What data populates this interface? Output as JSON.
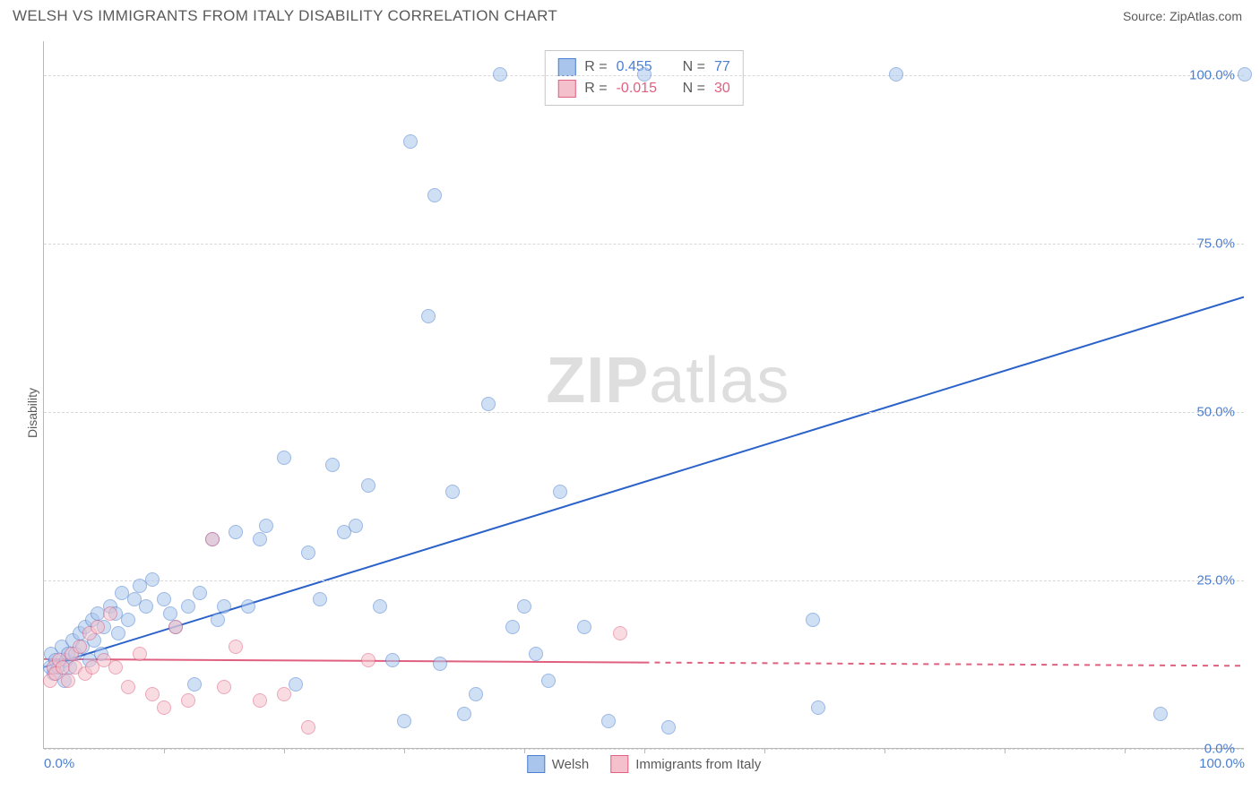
{
  "header": {
    "title": "WELSH VS IMMIGRANTS FROM ITALY DISABILITY CORRELATION CHART",
    "source_prefix": "Source: ",
    "source": "ZipAtlas.com"
  },
  "ylabel": "Disability",
  "watermark": {
    "bold": "ZIP",
    "light": "atlas"
  },
  "chart": {
    "type": "scatter",
    "xlim": [
      0,
      100
    ],
    "ylim": [
      0,
      105
    ],
    "ytick_labels": [
      "0.0%",
      "25.0%",
      "50.0%",
      "75.0%",
      "100.0%"
    ],
    "ytick_vals": [
      0,
      25,
      50,
      75,
      100
    ],
    "xtick_labels": [
      "0.0%",
      "100.0%"
    ],
    "xtick_vals": [
      0,
      100
    ],
    "xtick_minor": [
      10,
      20,
      30,
      40,
      50,
      60,
      70,
      80,
      90
    ],
    "grid_color": "#d8d8d8",
    "axis_color": "#b8b8b8",
    "background_color": "#ffffff",
    "label_color": "#4b7fd1",
    "point_radius": 8,
    "point_opacity": 0.55,
    "series": [
      {
        "name": "Welsh",
        "fill": "#a9c5ec",
        "stroke": "#4b7fd1",
        "r": "0.455",
        "n": "77",
        "trend": {
          "x1": 0,
          "y1": 12,
          "x2": 100,
          "y2": 67,
          "solid_until": 100,
          "color": "#2b62c9",
          "width": 2
        },
        "points": [
          [
            0.5,
            12
          ],
          [
            0.6,
            14
          ],
          [
            0.8,
            11
          ],
          [
            1,
            13
          ],
          [
            1.2,
            12
          ],
          [
            1.5,
            15
          ],
          [
            1.7,
            10
          ],
          [
            1.9,
            13
          ],
          [
            2.0,
            14
          ],
          [
            2.2,
            12
          ],
          [
            2.4,
            16
          ],
          [
            2.6,
            14
          ],
          [
            3,
            17
          ],
          [
            3.2,
            15
          ],
          [
            3.4,
            18
          ],
          [
            3.8,
            13
          ],
          [
            4,
            19
          ],
          [
            4.2,
            16
          ],
          [
            4.5,
            20
          ],
          [
            4.8,
            14
          ],
          [
            5,
            18
          ],
          [
            5.5,
            21
          ],
          [
            6,
            20
          ],
          [
            6.2,
            17
          ],
          [
            6.5,
            23
          ],
          [
            7,
            19
          ],
          [
            7.5,
            22
          ],
          [
            8,
            24
          ],
          [
            8.5,
            21
          ],
          [
            9,
            25
          ],
          [
            10,
            22
          ],
          [
            10.5,
            20
          ],
          [
            11,
            18
          ],
          [
            12,
            21
          ],
          [
            12.5,
            9.5
          ],
          [
            13,
            23
          ],
          [
            14,
            31
          ],
          [
            14.5,
            19
          ],
          [
            15,
            21
          ],
          [
            16,
            32
          ],
          [
            17,
            21
          ],
          [
            18,
            31
          ],
          [
            18.5,
            33
          ],
          [
            20,
            43
          ],
          [
            21,
            9.5
          ],
          [
            22,
            29
          ],
          [
            23,
            22
          ],
          [
            24,
            42
          ],
          [
            25,
            32
          ],
          [
            26,
            33
          ],
          [
            27,
            39
          ],
          [
            28,
            21
          ],
          [
            29,
            13
          ],
          [
            30,
            4
          ],
          [
            30.5,
            90
          ],
          [
            32,
            64
          ],
          [
            32.5,
            82
          ],
          [
            33,
            12.5
          ],
          [
            34,
            38
          ],
          [
            35,
            5
          ],
          [
            36,
            8
          ],
          [
            37,
            51
          ],
          [
            38,
            100
          ],
          [
            39,
            18
          ],
          [
            40,
            21
          ],
          [
            41,
            14
          ],
          [
            42,
            10
          ],
          [
            43,
            38
          ],
          [
            45,
            18
          ],
          [
            47,
            4
          ],
          [
            50,
            100
          ],
          [
            52,
            3
          ],
          [
            64,
            19
          ],
          [
            64.5,
            6
          ],
          [
            71,
            100
          ],
          [
            93,
            5
          ],
          [
            100,
            100
          ]
        ]
      },
      {
        "name": "Immigrants from Italy",
        "fill": "#f3c0cb",
        "stroke": "#e0607f",
        "r": "-0.015",
        "n": "30",
        "trend": {
          "x1": 0,
          "y1": 13.2,
          "x2": 100,
          "y2": 12.2,
          "solid_until": 50,
          "color": "#e0607f",
          "width": 2
        },
        "points": [
          [
            0.5,
            10
          ],
          [
            0.8,
            12
          ],
          [
            1,
            11
          ],
          [
            1.3,
            13
          ],
          [
            1.6,
            12
          ],
          [
            2,
            10
          ],
          [
            2.3,
            14
          ],
          [
            2.6,
            12
          ],
          [
            3,
            15
          ],
          [
            3.4,
            11
          ],
          [
            3.8,
            17
          ],
          [
            4,
            12
          ],
          [
            4.5,
            18
          ],
          [
            5,
            13
          ],
          [
            5.5,
            20
          ],
          [
            6,
            12
          ],
          [
            7,
            9
          ],
          [
            8,
            14
          ],
          [
            9,
            8
          ],
          [
            10,
            6
          ],
          [
            11,
            18
          ],
          [
            12,
            7
          ],
          [
            14,
            31
          ],
          [
            15,
            9
          ],
          [
            16,
            15
          ],
          [
            18,
            7
          ],
          [
            20,
            8
          ],
          [
            22,
            3
          ],
          [
            27,
            13
          ],
          [
            48,
            17
          ]
        ]
      }
    ]
  },
  "legend": {
    "r_label": "R =",
    "n_label": "N ="
  }
}
